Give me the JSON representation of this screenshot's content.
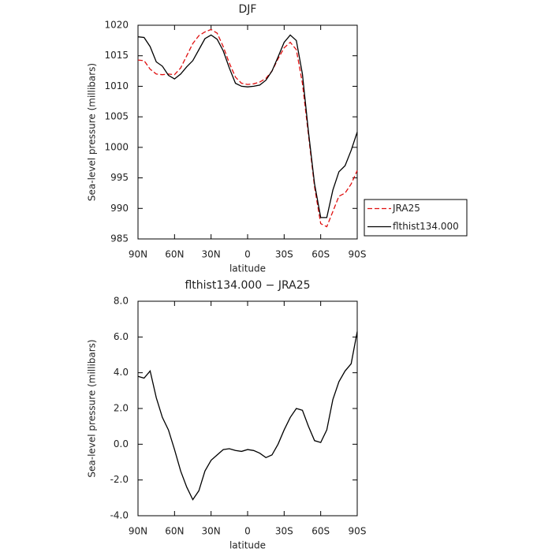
{
  "chart_data": [
    {
      "type": "line",
      "title": "DJF",
      "xlabel": "latitude",
      "ylabel": "Sea-level pressure (millibars)",
      "x": [
        90,
        85,
        80,
        75,
        70,
        65,
        60,
        55,
        50,
        45,
        40,
        35,
        30,
        25,
        20,
        15,
        10,
        5,
        0,
        -5,
        -10,
        -15,
        -20,
        -25,
        -30,
        -35,
        -40,
        -45,
        -50,
        -55,
        -60,
        -65,
        -70,
        -75,
        -80,
        -85,
        -90
      ],
      "series": [
        {
          "name": "JRA25",
          "color": "#e01010",
          "style": "dashed",
          "values": [
            1014.3,
            1014.2,
            1012.8,
            1012.0,
            1011.9,
            1012.0,
            1011.9,
            1013.0,
            1015.0,
            1017.0,
            1018.3,
            1018.9,
            1019.3,
            1018.7,
            1016.5,
            1013.8,
            1011.5,
            1010.5,
            1010.3,
            1010.4,
            1010.7,
            1011.3,
            1012.5,
            1014.5,
            1016.3,
            1017.2,
            1016.0,
            1010.5,
            1002.0,
            993.5,
            987.5,
            987.0,
            989.5,
            992.0,
            992.5,
            994.0,
            996.2
          ]
        },
        {
          "name": "flthist134.000",
          "color": "#000000",
          "style": "solid",
          "values": [
            1018.1,
            1018.0,
            1016.5,
            1014.0,
            1013.3,
            1011.8,
            1011.2,
            1012.0,
            1013.2,
            1014.2,
            1016.0,
            1017.8,
            1018.4,
            1017.7,
            1015.8,
            1013.0,
            1010.5,
            1010.0,
            1009.9,
            1010.0,
            1010.2,
            1011.0,
            1012.5,
            1014.8,
            1017.2,
            1018.4,
            1017.5,
            1012.0,
            1002.5,
            994.0,
            988.5,
            988.5,
            993.0,
            996.0,
            997.0,
            999.5,
            1002.5
          ]
        }
      ],
      "xlim": [
        90,
        -90
      ],
      "xticks": [
        {
          "value": 90,
          "label": "90N"
        },
        {
          "value": 60,
          "label": "60N"
        },
        {
          "value": 30,
          "label": "30N"
        },
        0,
        {
          "value": -30,
          "label": "30S"
        },
        {
          "value": -60,
          "label": "60S"
        },
        {
          "value": -90,
          "label": "90S"
        }
      ],
      "ylim": [
        985,
        1020
      ],
      "yticks": [
        985,
        990,
        995,
        1000,
        1005,
        1010,
        1015,
        1020
      ],
      "legend": "right"
    },
    {
      "type": "line",
      "title": "flthist134.000 − JRA25",
      "xlabel": "latitude",
      "ylabel": "Sea-level pressure (millibars)",
      "x": [
        90,
        85,
        80,
        75,
        70,
        65,
        60,
        55,
        50,
        45,
        40,
        35,
        30,
        25,
        20,
        15,
        10,
        5,
        0,
        -5,
        -10,
        -15,
        -20,
        -25,
        -30,
        -35,
        -40,
        -45,
        -50,
        -55,
        -60,
        -65,
        -70,
        -75,
        -80,
        -85,
        -90
      ],
      "series": [
        {
          "color": "#000000",
          "style": "solid",
          "values": [
            3.8,
            3.7,
            4.1,
            2.6,
            1.5,
            0.8,
            -0.3,
            -1.5,
            -2.4,
            -3.1,
            -2.6,
            -1.5,
            -0.9,
            -0.6,
            -0.3,
            -0.25,
            -0.35,
            -0.4,
            -0.3,
            -0.35,
            -0.5,
            -0.75,
            -0.6,
            0.0,
            0.8,
            1.5,
            2.0,
            1.9,
            1.0,
            0.2,
            0.1,
            0.8,
            2.5,
            3.5,
            4.1,
            4.5,
            6.3
          ]
        }
      ],
      "xlim": [
        90,
        -90
      ],
      "xticks": [
        {
          "value": 90,
          "label": "90N"
        },
        {
          "value": 60,
          "label": "60N"
        },
        {
          "value": 30,
          "label": "30N"
        },
        0,
        {
          "value": -30,
          "label": "30S"
        },
        {
          "value": -60,
          "label": "60S"
        },
        {
          "value": -90,
          "label": "90S"
        }
      ],
      "ylim": [
        -4,
        8
      ],
      "yticks": [
        {
          "value": -4,
          "label": "-4.0"
        },
        {
          "value": -2,
          "label": "-2.0"
        },
        {
          "value": 0,
          "label": "0.0"
        },
        {
          "value": 2,
          "label": "2.0"
        },
        {
          "value": 4,
          "label": "4.0"
        },
        {
          "value": 6,
          "label": "6.0"
        },
        {
          "value": 8,
          "label": "8.0"
        }
      ]
    }
  ]
}
